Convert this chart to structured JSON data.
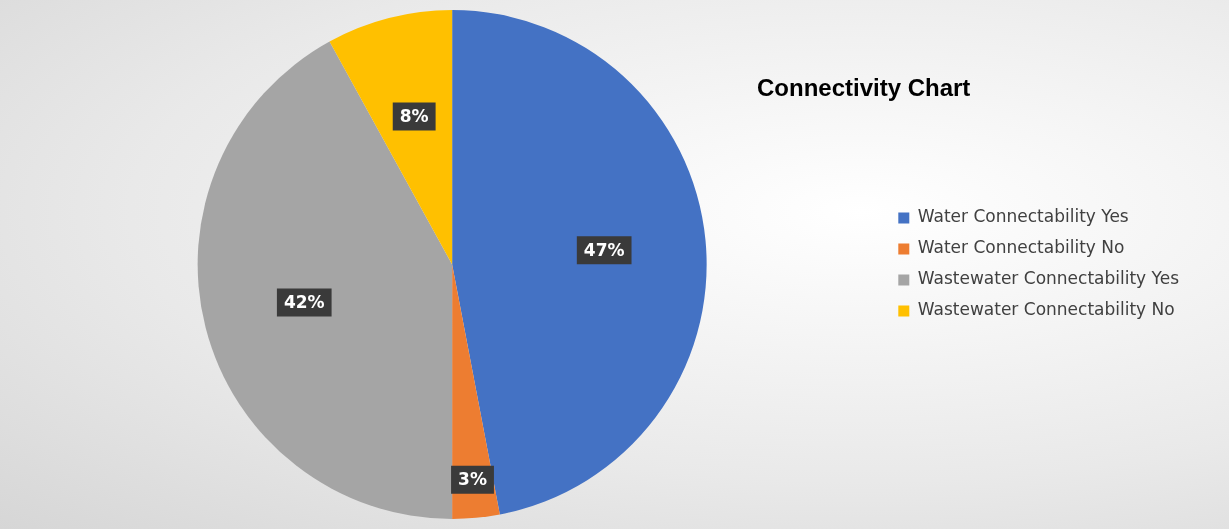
{
  "chart_data": {
    "type": "pie",
    "title": "Connectivity Chart",
    "categories": [
      "Water Connectability Yes",
      "Water Connectability No",
      "Wastewater Connectability Yes",
      "Wastewater Connectability No"
    ],
    "values": [
      47,
      3,
      42,
      8
    ],
    "colors": [
      "#4472c4",
      "#ed7d31",
      "#a5a5a5",
      "#ffc000"
    ],
    "value_labels": [
      "47%",
      "3%",
      "42%",
      "8%"
    ],
    "legend": "right"
  }
}
